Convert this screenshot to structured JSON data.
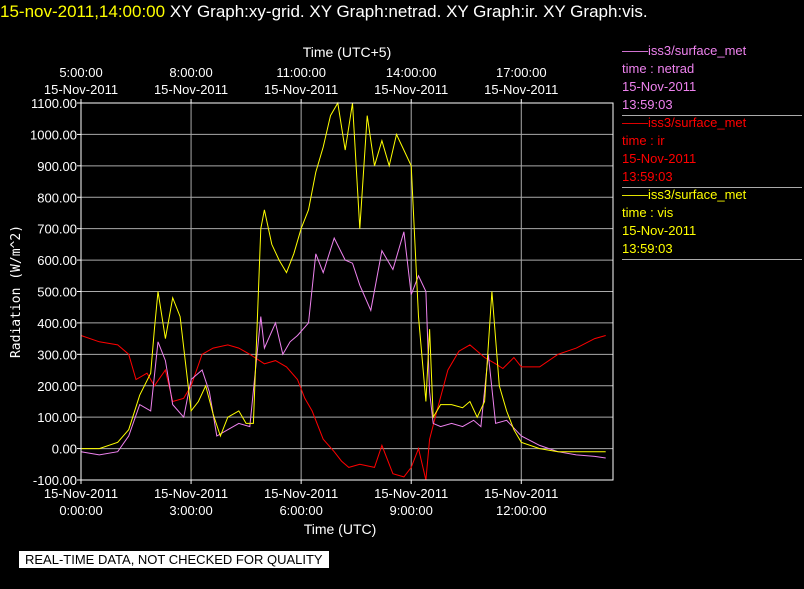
{
  "header": {
    "timestamp": "15-nov-2011,14:00:00",
    "graphs": "XY Graph:xy-grid.  XY Graph:netrad.  XY Graph:ir.  XY Graph:vis."
  },
  "legend": [
    {
      "source": "iss3/surface_met",
      "var": "time : netrad",
      "date": "15-Nov-2011",
      "time": "13:59:03",
      "color": "#ee82ee"
    },
    {
      "source": "iss3/surface_met",
      "var": "time : ir",
      "date": "15-Nov-2011",
      "time": "13:59:03",
      "color": "#ff0000"
    },
    {
      "source": "iss3/surface_met",
      "var": "time : vis",
      "date": "15-Nov-2011",
      "time": "13:59:03",
      "color": "#ffff00"
    }
  ],
  "footer": "REAL-TIME DATA, NOT CHECKED FOR QUALITY",
  "chart_data": {
    "type": "line",
    "xlabel": "Time (UTC)",
    "x2label": "Time (UTC+5)",
    "ylabel": "Radiation  (W/m^2)",
    "xlim": [
      0,
      14.5
    ],
    "ylim": [
      -100,
      1100
    ],
    "grid": true,
    "yticks": [
      {
        "v": -100,
        "label": "-100.00"
      },
      {
        "v": 0,
        "label": "0.00"
      },
      {
        "v": 100,
        "label": "100.00"
      },
      {
        "v": 200,
        "label": "200.00"
      },
      {
        "v": 300,
        "label": "300.00"
      },
      {
        "v": 400,
        "label": "400.00"
      },
      {
        "v": 500,
        "label": "500.00"
      },
      {
        "v": 600,
        "label": "600.00"
      },
      {
        "v": 700,
        "label": "700.00"
      },
      {
        "v": 800,
        "label": "800.00"
      },
      {
        "v": 900,
        "label": "900.00"
      },
      {
        "v": 1000,
        "label": "1000.00"
      },
      {
        "v": 1100,
        "label": "1100.00"
      }
    ],
    "xticks": [
      {
        "v": 0,
        "date": "15-Nov-2011",
        "time": "0:00:00"
      },
      {
        "v": 3,
        "date": "15-Nov-2011",
        "time": "3:00:00"
      },
      {
        "v": 6,
        "date": "15-Nov-2011",
        "time": "6:00:00"
      },
      {
        "v": 9,
        "date": "15-Nov-2011",
        "time": "9:00:00"
      },
      {
        "v": 12,
        "date": "15-Nov-2011",
        "time": "12:00:00"
      }
    ],
    "x2ticks": [
      {
        "v": 0,
        "time": "5:00:00",
        "date": "15-Nov-2011"
      },
      {
        "v": 3,
        "time": "8:00:00",
        "date": "15-Nov-2011"
      },
      {
        "v": 6,
        "time": "11:00:00",
        "date": "15-Nov-2011"
      },
      {
        "v": 9,
        "time": "14:00:00",
        "date": "15-Nov-2011"
      },
      {
        "v": 12,
        "time": "17:00:00",
        "date": "15-Nov-2011"
      }
    ],
    "series": [
      {
        "key": "ir",
        "color": "#ff0000",
        "x": [
          0,
          0.5,
          1.0,
          1.3,
          1.5,
          1.8,
          2.0,
          2.3,
          2.5,
          2.8,
          3.0,
          3.3,
          3.6,
          4.0,
          4.3,
          4.6,
          5.0,
          5.3,
          5.6,
          5.9,
          6.1,
          6.3,
          6.6,
          6.9,
          7.1,
          7.3,
          7.6,
          8.0,
          8.2,
          8.5,
          8.8,
          9.0,
          9.2,
          9.4,
          9.5,
          9.7,
          10.0,
          10.3,
          10.6,
          11.0,
          11.3,
          11.5,
          11.8,
          12.0,
          12.5,
          13.0,
          13.5,
          14.0,
          14.3
        ],
        "y": [
          360,
          340,
          330,
          300,
          220,
          240,
          200,
          250,
          150,
          160,
          200,
          300,
          320,
          330,
          320,
          300,
          270,
          280,
          260,
          220,
          160,
          120,
          30,
          -10,
          -40,
          -60,
          -50,
          -60,
          10,
          -80,
          -90,
          -60,
          0,
          -100,
          30,
          120,
          250,
          310,
          330,
          290,
          270,
          255,
          290,
          260,
          260,
          300,
          320,
          350,
          360
        ]
      },
      {
        "key": "netrad",
        "color": "#ee82ee",
        "x": [
          0,
          0.5,
          1.0,
          1.3,
          1.6,
          1.9,
          2.1,
          2.3,
          2.5,
          2.8,
          3.0,
          3.3,
          3.5,
          3.7,
          4.0,
          4.3,
          4.6,
          4.9,
          5.0,
          5.3,
          5.5,
          5.7,
          5.9,
          6.2,
          6.4,
          6.6,
          6.9,
          7.2,
          7.4,
          7.6,
          7.9,
          8.2,
          8.5,
          8.8,
          9.0,
          9.2,
          9.4,
          9.5,
          9.6,
          9.8,
          10.1,
          10.4,
          10.7,
          10.9,
          11.1,
          11.3,
          11.6,
          12.0,
          12.5,
          13.0,
          13.5,
          14.0,
          14.3
        ],
        "y": [
          -10,
          -20,
          -10,
          40,
          140,
          120,
          340,
          280,
          140,
          100,
          220,
          250,
          180,
          40,
          60,
          80,
          70,
          420,
          320,
          400,
          300,
          340,
          360,
          400,
          620,
          560,
          670,
          600,
          590,
          520,
          440,
          630,
          570,
          690,
          490,
          550,
          500,
          180,
          80,
          70,
          80,
          70,
          90,
          70,
          300,
          80,
          90,
          40,
          10,
          -10,
          -20,
          -25,
          -30
        ]
      },
      {
        "key": "vis",
        "color": "#ffff00",
        "x": [
          0,
          0.5,
          1.0,
          1.3,
          1.6,
          1.9,
          2.0,
          2.1,
          2.3,
          2.5,
          2.7,
          3.0,
          3.2,
          3.4,
          3.6,
          3.8,
          4.0,
          4.3,
          4.5,
          4.7,
          4.9,
          5.0,
          5.2,
          5.4,
          5.6,
          5.8,
          6.0,
          6.2,
          6.4,
          6.6,
          6.8,
          7.0,
          7.2,
          7.4,
          7.6,
          7.8,
          8.0,
          8.2,
          8.4,
          8.6,
          8.8,
          9.0,
          9.2,
          9.4,
          9.5,
          9.6,
          9.8,
          10.1,
          10.4,
          10.6,
          10.8,
          11.0,
          11.2,
          11.4,
          11.6,
          11.8,
          12.0,
          12.5,
          13.0,
          13.5,
          14.0,
          14.3
        ],
        "y": [
          0,
          0,
          20,
          60,
          170,
          240,
          380,
          500,
          350,
          480,
          420,
          120,
          150,
          200,
          110,
          40,
          100,
          120,
          80,
          80,
          700,
          760,
          650,
          600,
          560,
          620,
          700,
          760,
          880,
          960,
          1060,
          1100,
          950,
          1100,
          700,
          1060,
          900,
          980,
          900,
          1000,
          950,
          900,
          420,
          150,
          380,
          100,
          140,
          140,
          130,
          150,
          100,
          150,
          500,
          200,
          120,
          60,
          20,
          0,
          -10,
          -10,
          -10,
          -10
        ]
      }
    ]
  }
}
